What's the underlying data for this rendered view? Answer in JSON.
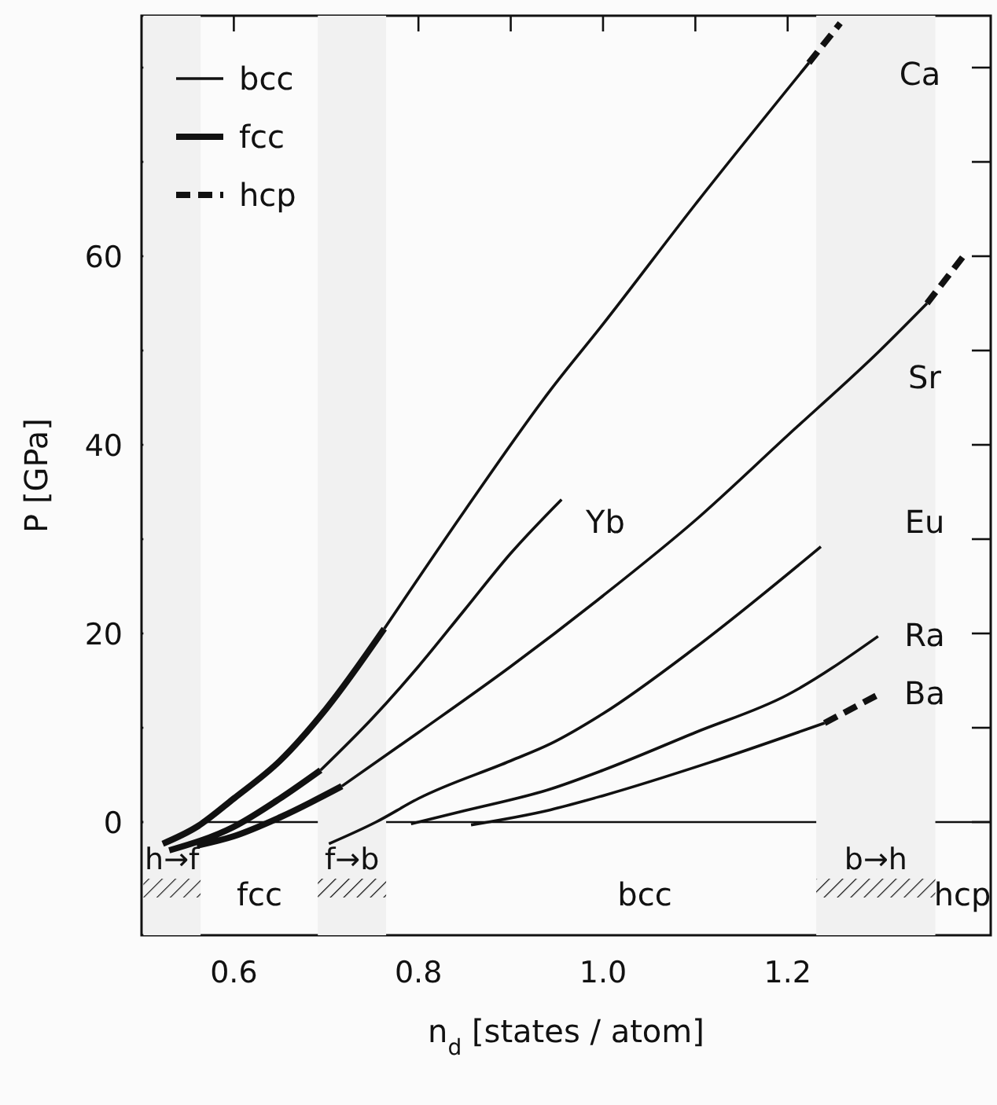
{
  "chart_data": {
    "type": "line",
    "xlabel": "n$_{d}$ [states / atom]",
    "ylabel": "P [GPa]",
    "xlim": [
      0.5,
      1.42
    ],
    "ylim": [
      -12,
      85.5
    ],
    "xticks": [
      {
        "value": 0.6,
        "label": "0.6"
      },
      {
        "value": 0.7,
        "label": null
      },
      {
        "value": 0.8,
        "label": "0.8"
      },
      {
        "value": 0.9,
        "label": null
      },
      {
        "value": 1.0,
        "label": "1.0"
      },
      {
        "value": 1.1,
        "label": null
      },
      {
        "value": 1.2,
        "label": "1.2"
      },
      {
        "value": 1.3,
        "label": null
      }
    ],
    "yticks": [
      0,
      {
        "value": 10,
        "label": null
      },
      20,
      {
        "value": 30,
        "label": null
      },
      40,
      {
        "value": 50,
        "label": null
      },
      60,
      {
        "value": 70,
        "label": null
      },
      {
        "value": 80,
        "label": null
      }
    ],
    "legend": "top left",
    "marker": "none",
    "series": [
      {
        "name": "bcc",
        "color": "#111111",
        "line_style": "solid",
        "x": [
          0.763,
          0.85,
          0.943,
          1.0,
          1.1,
          1.223,
          null,
          0.694,
          0.75,
          0.8,
          0.85,
          0.9,
          0.955,
          null,
          0.717,
          0.8,
          0.9,
          1.0,
          1.1,
          1.2,
          1.3,
          1.351,
          null,
          0.703,
          0.754,
          0.8,
          0.9,
          0.943,
          1.0,
          1.1,
          1.236,
          null,
          0.792,
          0.85,
          0.943,
          1.0,
          1.1,
          1.2,
          1.298,
          null,
          0.857,
          0.943,
          1.0,
          1.115,
          1.24
        ],
        "values": [
          20.5,
          33,
          45.8,
          52.8,
          65.5,
          80.5,
          null,
          5.5,
          11,
          16.5,
          22.5,
          28.5,
          34.2,
          null,
          3.8,
          9.5,
          16.5,
          24,
          32,
          41,
          50,
          55,
          null,
          -2.3,
          0,
          2.5,
          6.5,
          8.3,
          11.5,
          18.5,
          29.2,
          null,
          -0.2,
          1.2,
          3.5,
          5.5,
          9.5,
          13.5,
          19.7,
          null,
          -0.3,
          1.3,
          2.8,
          6.3,
          10.5
        ]
      },
      {
        "name": "fcc",
        "color": "#111111",
        "line_style": "solid",
        "x": [
          0.523,
          0.56,
          0.6,
          0.65,
          0.7,
          0.763,
          null,
          0.53,
          0.6,
          0.65,
          0.694,
          null,
          0.56,
          0.6,
          0.65,
          0.717
        ],
        "values": [
          -2.3,
          -0.5,
          2.5,
          6.5,
          12,
          20.5,
          null,
          -3,
          -0.5,
          2.5,
          5.5,
          null,
          -2.5,
          -1.5,
          0.5,
          3.8
        ]
      },
      {
        "name": "hcp",
        "color": "#111111",
        "line_style": "dashed",
        "x": [
          1.223,
          1.257,
          null,
          1.351,
          1.392,
          null,
          1.24,
          1.298
        ],
        "values": [
          80.5,
          84.7,
          null,
          55,
          60.2,
          null,
          10.5,
          13.5
        ]
      }
    ],
    "ref_lines": [
      {
        "axis": "y",
        "value": 0,
        "label": null
      }
    ],
    "bands": [
      {
        "axis": "x",
        "from": 0.502,
        "to": 0.564,
        "label": "h→f",
        "color": "#f1f1f1"
      },
      {
        "axis": "x",
        "from": 0.691,
        "to": 0.765,
        "label": "f→b",
        "color": "#f1f1f1"
      },
      {
        "axis": "x",
        "from": 1.231,
        "to": 1.36,
        "label": "b→h",
        "color": "#f1f1f1"
      }
    ],
    "annotations": [
      "Ca",
      "Sr",
      "Yb",
      "Eu",
      "Ra",
      "Ba",
      "fcc",
      "bcc",
      "hcp"
    ]
  }
}
